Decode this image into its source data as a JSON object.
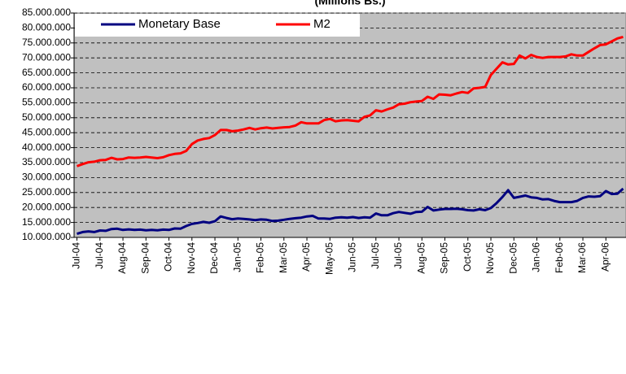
{
  "chart_data": {
    "type": "line",
    "title": "(Millions  Bs.)",
    "categories": [
      "Jul-04",
      null,
      null,
      null,
      "Jul-04",
      null,
      null,
      null,
      "Aug-04",
      null,
      null,
      null,
      "Sep-04",
      null,
      null,
      null,
      "Oct-04",
      null,
      null,
      null,
      "Nov-04",
      null,
      null,
      null,
      "Dec-04",
      null,
      null,
      null,
      "Jan-05",
      null,
      null,
      null,
      "Feb-05",
      null,
      null,
      null,
      "Mar-05",
      null,
      null,
      null,
      "Apr-05",
      null,
      null,
      null,
      "May-05",
      null,
      null,
      null,
      "Jun-05",
      null,
      null,
      null,
      "Jul-05",
      null,
      null,
      null,
      "Jul-05",
      null,
      null,
      null,
      "Aug-05",
      null,
      null,
      null,
      "Sep-05",
      null,
      null,
      null,
      "Oct-05",
      null,
      null,
      null,
      "Nov-05",
      null,
      null,
      null,
      "Dec-05",
      null,
      null,
      null,
      "Jan-06",
      null,
      null,
      null,
      "Feb-06",
      null,
      null,
      null,
      "Mar-06",
      null,
      null,
      null,
      "Apr-06",
      null,
      null,
      null
    ],
    "series": [
      {
        "name": "Monetary Base",
        "color": "#000080",
        "values": [
          11200000,
          11800000,
          12000000,
          11800000,
          12300000,
          12200000,
          12800000,
          12900000,
          12500000,
          12700000,
          12500000,
          12600000,
          12400000,
          12500000,
          12400000,
          12600000,
          12500000,
          13000000,
          12900000,
          13800000,
          14500000,
          14800000,
          15200000,
          14900000,
          15400000,
          17000000,
          16500000,
          16100000,
          16300000,
          16200000,
          16000000,
          15800000,
          16000000,
          15900000,
          15500000,
          15600000,
          15900000,
          16200000,
          16400000,
          16600000,
          17000000,
          17200000,
          16300000,
          16300000,
          16200000,
          16600000,
          16700000,
          16600000,
          16800000,
          16500000,
          16700000,
          16600000,
          18000000,
          17400000,
          17400000,
          18100000,
          18500000,
          18200000,
          17900000,
          18500000,
          18600000,
          20200000,
          19000000,
          19300000,
          19500000,
          19500000,
          19600000,
          19400000,
          19100000,
          19000000,
          19400000,
          19100000,
          19800000,
          21500000,
          23500000,
          25800000,
          23200000,
          23600000,
          24000000,
          23400000,
          23200000,
          22700000,
          22800000,
          22200000,
          21800000,
          21800000,
          21800000,
          22200000,
          23200000,
          23700000,
          23600000,
          23800000,
          25500000,
          24500000,
          24600000,
          26300000
        ]
      },
      {
        "name": "M2",
        "color": "#ff0000",
        "values": [
          33800000,
          34500000,
          35100000,
          35300000,
          35800000,
          35900000,
          36600000,
          36100000,
          36200000,
          36700000,
          36600000,
          36700000,
          36900000,
          36700000,
          36500000,
          36800000,
          37500000,
          37900000,
          38100000,
          38900000,
          41200000,
          42400000,
          42900000,
          43200000,
          44200000,
          45900000,
          45900000,
          45500000,
          45700000,
          46100000,
          46600000,
          46100000,
          46500000,
          46700000,
          46400000,
          46600000,
          46800000,
          46900000,
          47400000,
          48500000,
          48100000,
          48100000,
          48100000,
          49200000,
          49600000,
          48800000,
          49100000,
          49200000,
          49000000,
          48800000,
          50300000,
          50800000,
          52500000,
          52100000,
          52800000,
          53400000,
          54500000,
          54700000,
          55200000,
          55400000,
          55600000,
          57000000,
          56300000,
          57800000,
          57700000,
          57500000,
          58100000,
          58600000,
          58300000,
          59800000,
          60000000,
          60300000,
          64300000,
          66400000,
          68500000,
          67800000,
          68000000,
          70800000,
          69800000,
          71000000,
          70300000,
          70000000,
          70300000,
          70300000,
          70300000,
          70500000,
          71200000,
          70800000,
          70800000,
          72000000,
          73200000,
          74300000,
          74500000,
          75500000,
          76500000,
          77000000
        ]
      }
    ],
    "ylim": [
      10000000,
      85000000
    ],
    "yticks": [
      {
        "value": 10000000,
        "label": "10.000.000"
      },
      {
        "value": 15000000,
        "label": "15.000.000"
      },
      {
        "value": 20000000,
        "label": "20.000.000"
      },
      {
        "value": 25000000,
        "label": "25.000.000"
      },
      {
        "value": 30000000,
        "label": "30.000.000"
      },
      {
        "value": 35000000,
        "label": "35.000.000"
      },
      {
        "value": 40000000,
        "label": "40.000.000"
      },
      {
        "value": 45000000,
        "label": "45.000.000"
      },
      {
        "value": 50000000,
        "label": "50.000.000"
      },
      {
        "value": 55000000,
        "label": "55.000.000"
      },
      {
        "value": 60000000,
        "label": "60.000.000"
      },
      {
        "value": 65000000,
        "label": "65.000.000"
      },
      {
        "value": 70000000,
        "label": "70.000.000"
      },
      {
        "value": 75000000,
        "label": "75.000.000"
      },
      {
        "value": 80000000,
        "label": "80.000.000"
      },
      {
        "value": 85000000,
        "label": "85.000.000"
      }
    ],
    "grid": true,
    "legend": "upper left"
  }
}
